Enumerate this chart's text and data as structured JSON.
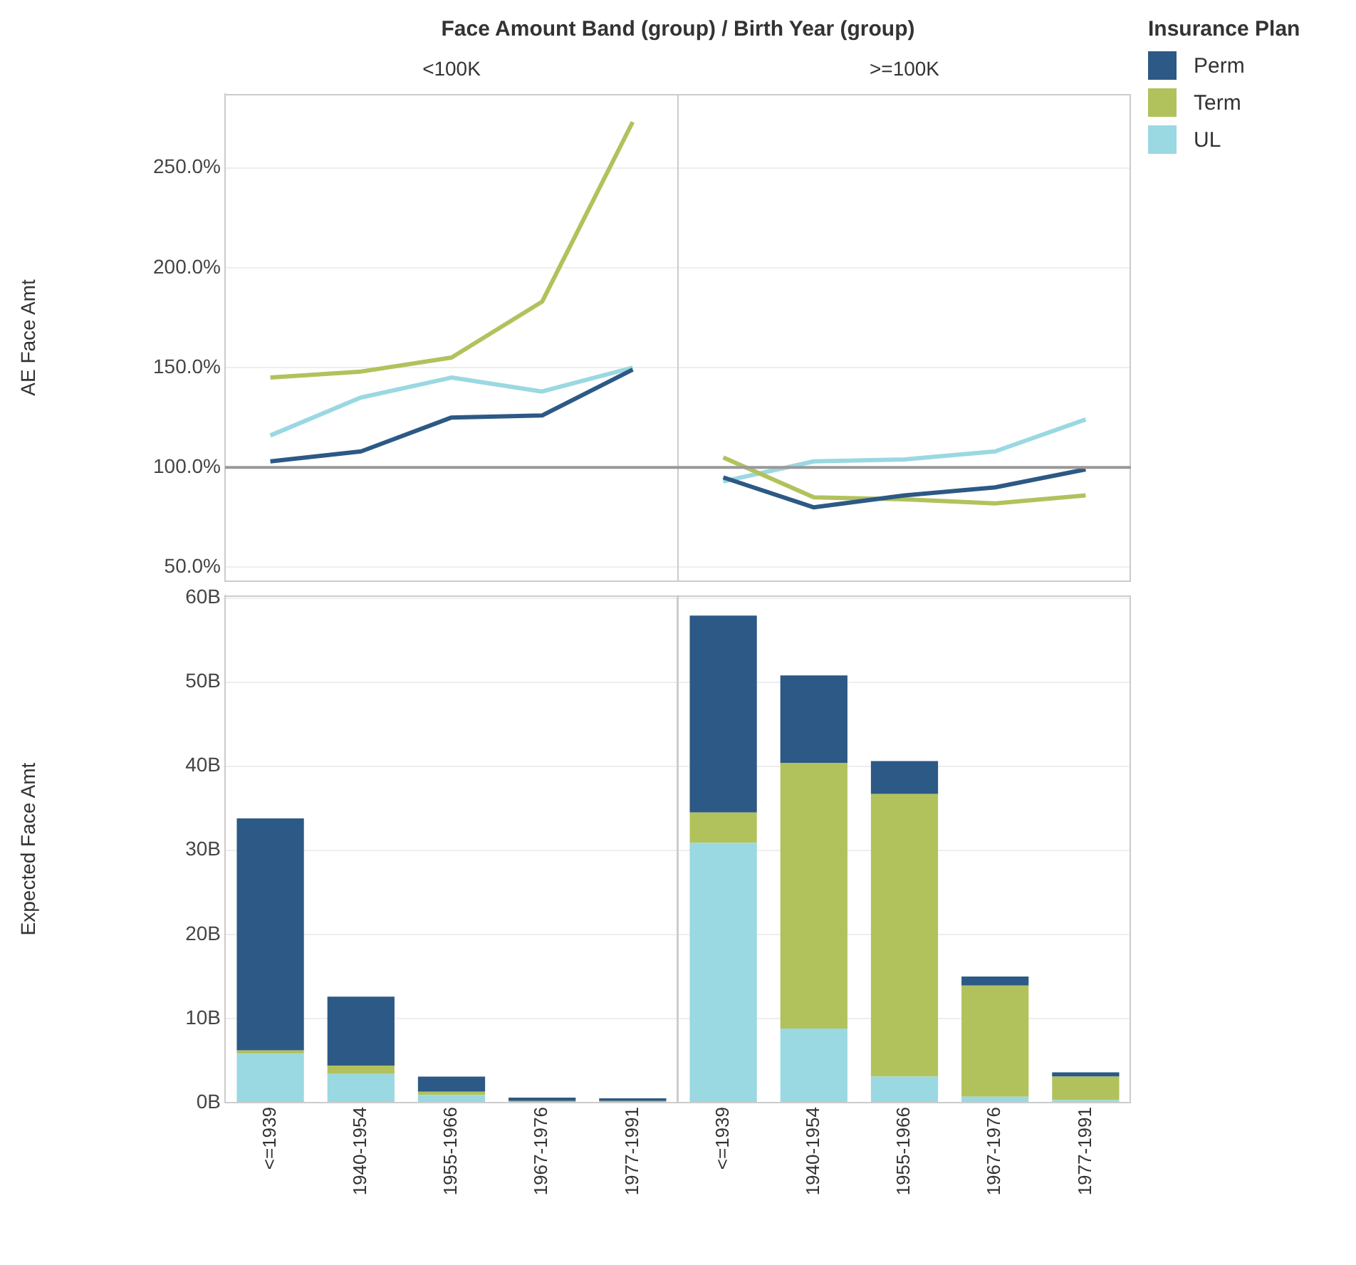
{
  "chart_data": [
    {
      "type": "line",
      "annotations": [
        "Face Amount Band (group) / Birth Year (group)",
        "<100K",
        ">=100K"
      ],
      "ylabel": "AE Face Amt",
      "legend_title": "Insurance Plan",
      "legend": "right",
      "categories": [
        null,
        null,
        null,
        null,
        null,
        null,
        null,
        null,
        null,
        null
      ],
      "series": [
        {
          "name": "Perm",
          "color": "#2c5985",
          "values": [
            103,
            108,
            125,
            126,
            149,
            null,
            null,
            null,
            null,
            null
          ]
        },
        {
          "name": "Term",
          "color": "#b1c25c",
          "values": [
            145,
            148,
            155,
            183,
            273,
            null,
            null,
            null,
            null,
            null
          ]
        },
        {
          "name": "UL",
          "color": "#9ad8e2",
          "values": [
            116,
            135,
            145,
            138,
            150,
            null,
            null,
            null,
            null,
            null
          ]
        },
        {
          "color": "#2c5985",
          "values": [
            null,
            null,
            null,
            null,
            null,
            95,
            80,
            86,
            90,
            99
          ]
        },
        {
          "color": "#b1c25c",
          "values": [
            null,
            null,
            null,
            null,
            null,
            105,
            85,
            84,
            82,
            86
          ]
        },
        {
          "color": "#9ad8e2",
          "values": [
            null,
            null,
            null,
            null,
            null,
            93,
            103,
            104,
            108,
            124
          ]
        }
      ],
      "ylim": [
        43,
        287
      ],
      "yticks": [
        {
          "value": 50,
          "label": "50.0%"
        },
        {
          "value": 100,
          "label": "100.0%"
        },
        {
          "value": 150,
          "label": "150.0%"
        },
        {
          "value": 200,
          "label": "200.0%"
        },
        {
          "value": 250,
          "label": "250.0%"
        }
      ],
      "ref_lines": [
        {
          "axis": "y",
          "value": 100,
          "color": "#999999"
        }
      ],
      "grid": "y",
      "tick_labels": "y"
    },
    {
      "type": "bar",
      "stacked": true,
      "ylabel": "Expected Face Amt",
      "categories": [
        "<=1939",
        "1940-1954",
        "1955-1966",
        "1967-1976",
        "1977-1991"
      ],
      "series": [
        {
          "color": "#9ad8e2",
          "values": [
            5.8,
            3.4,
            0.9,
            null,
            null
          ]
        },
        {
          "color": "#b1c25c",
          "values": [
            0.4,
            1.0,
            0.4,
            0.2,
            0.2
          ]
        },
        {
          "color": "#2c5985",
          "values": [
            27.6,
            8.2,
            1.8,
            0.4,
            0.3
          ]
        }
      ],
      "ylim": [
        0,
        60.3
      ],
      "yticks": [
        {
          "value": 0,
          "label": "0B"
        },
        {
          "value": 10,
          "label": "10B"
        },
        {
          "value": 20,
          "label": "20B"
        },
        {
          "value": 30,
          "label": "30B"
        },
        {
          "value": 40,
          "label": "40B"
        },
        {
          "value": 50,
          "label": "50B"
        },
        {
          "value": 60,
          "label": "60B"
        }
      ],
      "grid": "y"
    },
    {
      "type": "bar",
      "stacked": true,
      "categories": [
        "<=1939",
        "1940-1954",
        "1955-1966",
        "1967-1976",
        "1977-1991"
      ],
      "series": [
        {
          "color": "#9ad8e2",
          "values": [
            30.9,
            8.8,
            3.1,
            0.7,
            0.3
          ]
        },
        {
          "color": "#b1c25c",
          "values": [
            3.6,
            31.6,
            33.6,
            13.2,
            2.8
          ]
        },
        {
          "color": "#2c5985",
          "values": [
            23.4,
            10.4,
            3.9,
            1.1,
            0.5
          ]
        }
      ],
      "ylim": [
        0,
        60.3
      ],
      "yticks": [
        0,
        10,
        20,
        30,
        40,
        50,
        60
      ],
      "grid": "y",
      "tick_labels": "x"
    }
  ]
}
